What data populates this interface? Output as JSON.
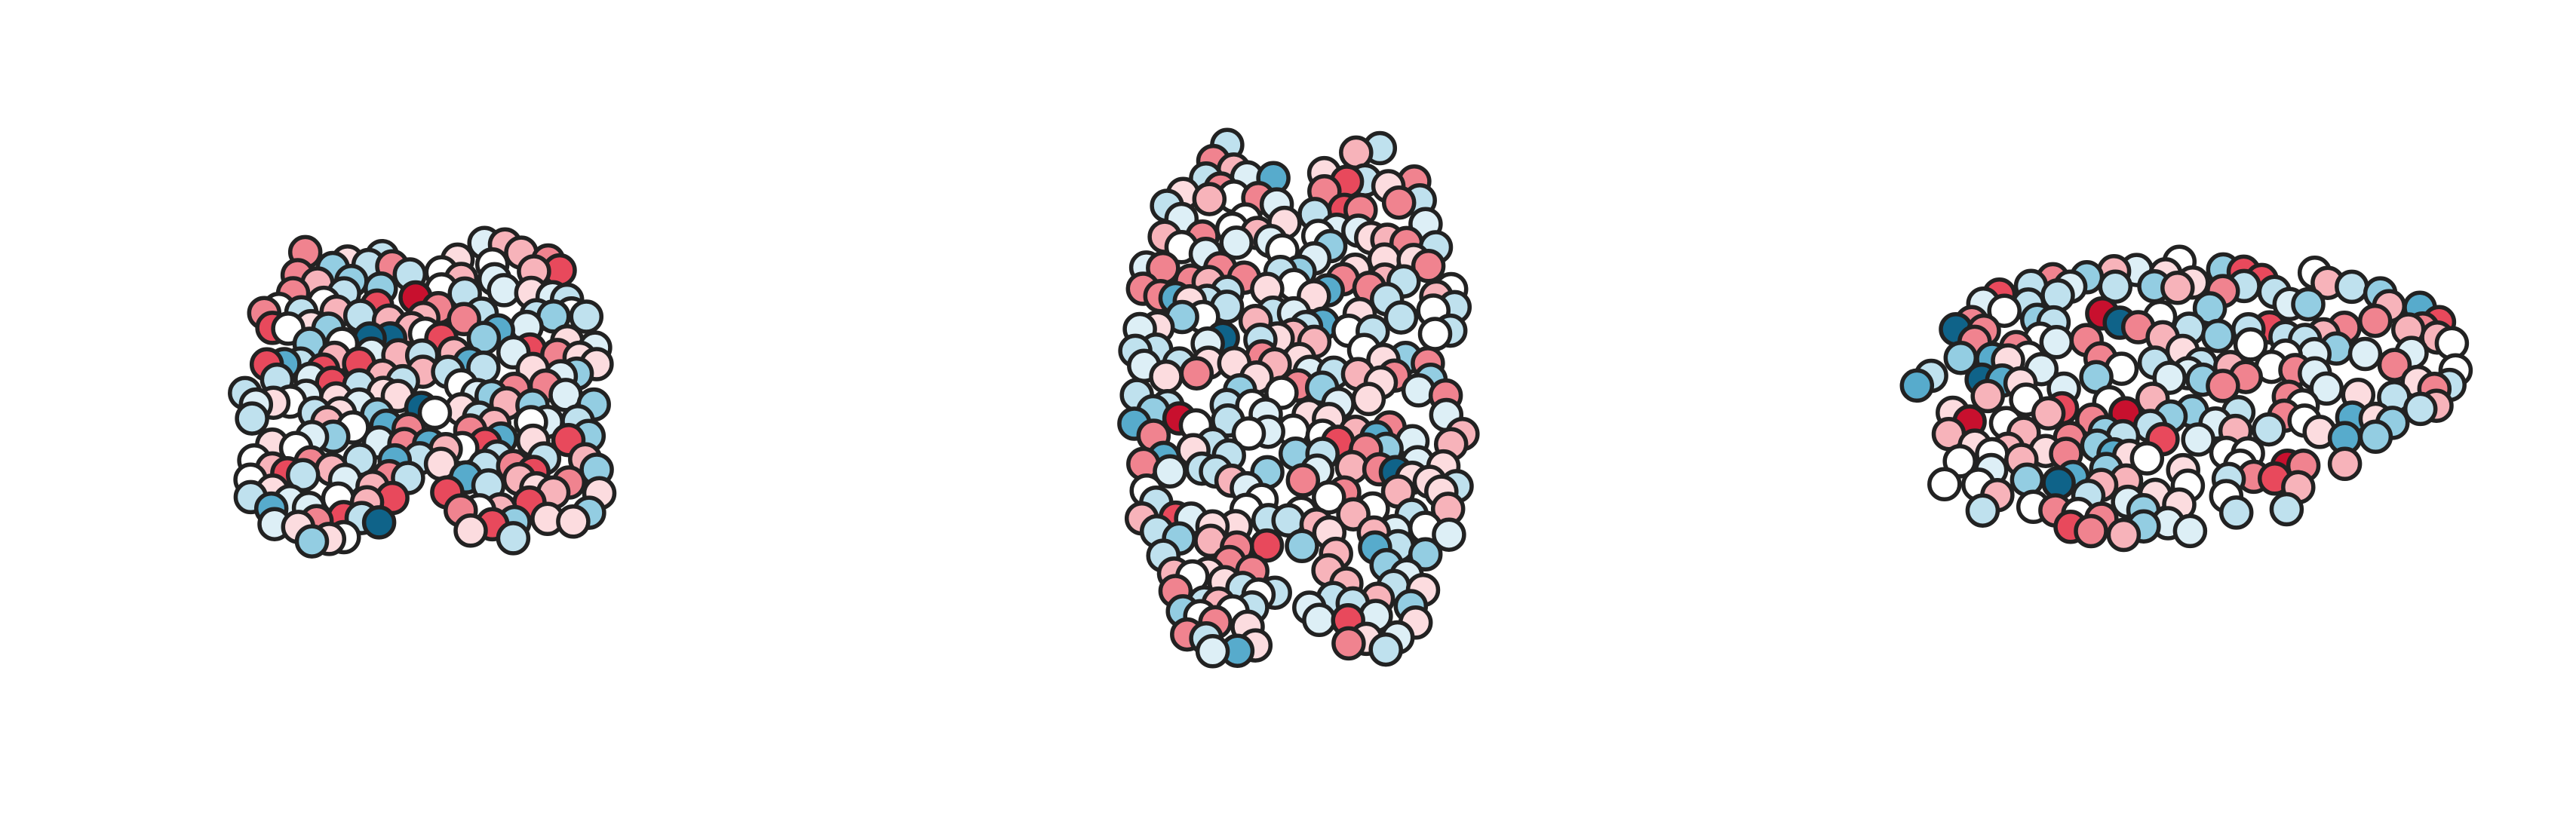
{
  "figure": {
    "description_free": true,
    "views": [
      {
        "id": "coronal",
        "nodes": 198,
        "seed": 11
      },
      {
        "id": "axial",
        "nodes": 260,
        "seed": 29
      },
      {
        "id": "sagittal",
        "nodes": 190,
        "seed": 47
      }
    ],
    "colormap": {
      "stroke": "#222222",
      "palette": [
        "#c8102e",
        "#e8495c",
        "#f0838f",
        "#f7b3ba",
        "#fcdcdf",
        "#ffffff",
        "#ddeff6",
        "#bfe1ee",
        "#93cde2",
        "#57abcc",
        "#0f6389"
      ],
      "weights": [
        1,
        4,
        10,
        12,
        8,
        9,
        10,
        11,
        7,
        3,
        1
      ]
    }
  }
}
